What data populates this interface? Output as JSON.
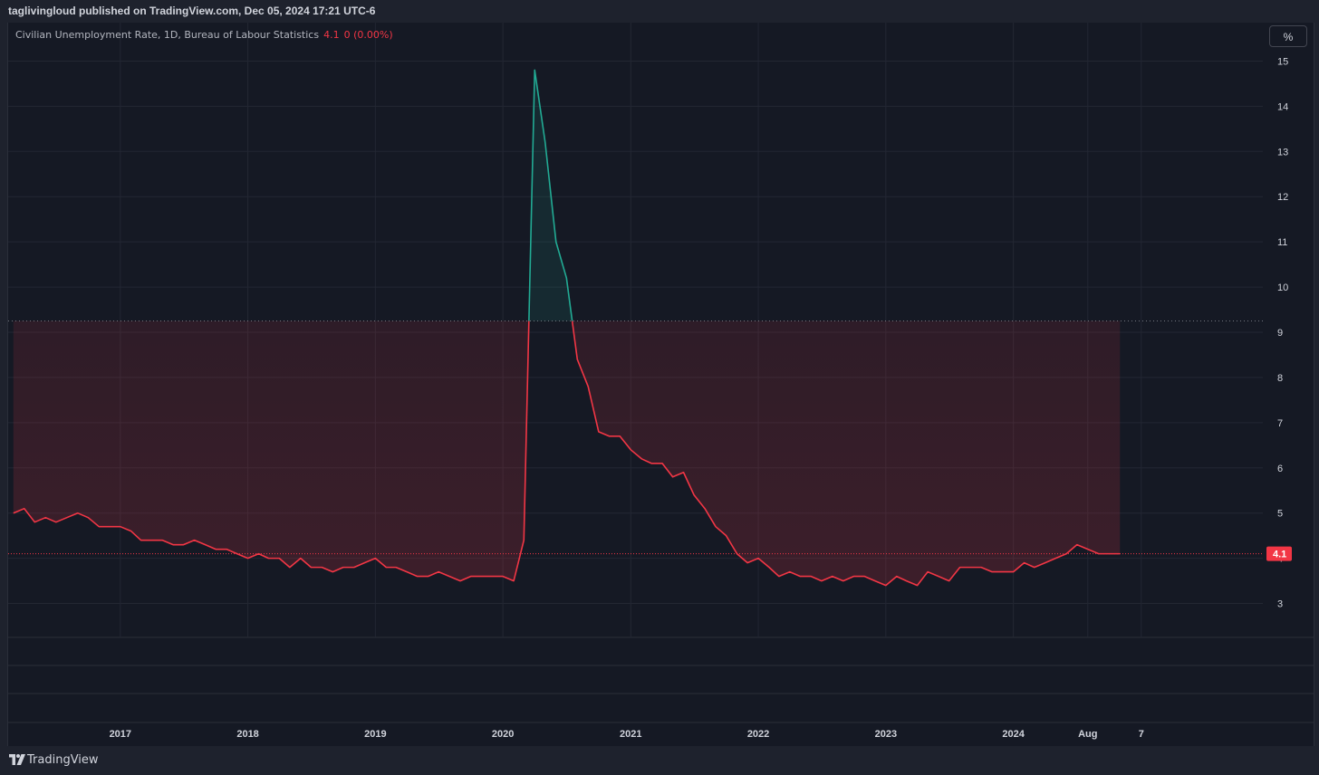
{
  "header": {
    "published_text": "taglivingloud published on TradingView.com, Dec 05, 2024 17:21 UTC-6"
  },
  "legend": {
    "series_name": "Civilian Unemployment Rate, 1D, Bureau of Labour Statistics",
    "last_value": "4.1",
    "change": "0 (0.00%)"
  },
  "scale_button": {
    "label": "%"
  },
  "price_label": "4.1",
  "footer": {
    "brand": "TradingView"
  },
  "colors": {
    "background": "#151924",
    "line_above_base": "#22ab94",
    "line_below_base": "#f23645",
    "price_label_bg": "#f23645",
    "grid": "#232733",
    "axis_text": "#d1d4dc"
  },
  "chart_data": {
    "type": "line",
    "style": "baseline",
    "baseline_value": 9.25,
    "last_value": 4.1,
    "y_axis": {
      "side": "right",
      "ylim": [
        2.25,
        15.85
      ],
      "ticks": [
        3,
        4,
        5,
        6,
        7,
        8,
        9,
        10,
        11,
        12,
        13,
        14,
        15
      ]
    },
    "x_axis": {
      "tick_labels": [
        "2017",
        "2018",
        "2019",
        "2020",
        "2021",
        "2022",
        "2023",
        "2024",
        "Aug",
        "7"
      ],
      "tick_dates": [
        "2017-01-01",
        "2018-01-01",
        "2019-01-01",
        "2020-01-01",
        "2021-01-01",
        "2022-01-01",
        "2023-01-01",
        "2024-01-01",
        "2024-08-01",
        "2025-01-01"
      ],
      "range": [
        "2016-02-15",
        "2025-12-15"
      ]
    },
    "grid": true,
    "series": [
      {
        "x": [
          "2016-03-01",
          "2016-04-01",
          "2016-05-01",
          "2016-06-01",
          "2016-07-01",
          "2016-08-01",
          "2016-09-01",
          "2016-10-01",
          "2016-11-01",
          "2016-12-01",
          "2017-01-01",
          "2017-02-01",
          "2017-03-01",
          "2017-04-01",
          "2017-05-01",
          "2017-06-01",
          "2017-07-01",
          "2017-08-01",
          "2017-09-01",
          "2017-10-01",
          "2017-11-01",
          "2017-12-01",
          "2018-01-01",
          "2018-02-01",
          "2018-03-01",
          "2018-04-01",
          "2018-05-01",
          "2018-06-01",
          "2018-07-01",
          "2018-08-01",
          "2018-09-01",
          "2018-10-01",
          "2018-11-01",
          "2018-12-01",
          "2019-01-01",
          "2019-02-01",
          "2019-03-01",
          "2019-04-01",
          "2019-05-01",
          "2019-06-01",
          "2019-07-01",
          "2019-08-01",
          "2019-09-01",
          "2019-10-01",
          "2019-11-01",
          "2019-12-01",
          "2020-01-01",
          "2020-02-01",
          "2020-03-01",
          "2020-04-01",
          "2020-05-01",
          "2020-06-01",
          "2020-07-01",
          "2020-08-01",
          "2020-09-01",
          "2020-10-01",
          "2020-11-01",
          "2020-12-01",
          "2021-01-01",
          "2021-02-01",
          "2021-03-01",
          "2021-04-01",
          "2021-05-01",
          "2021-06-01",
          "2021-07-01",
          "2021-08-01",
          "2021-09-01",
          "2021-10-01",
          "2021-11-01",
          "2021-12-01",
          "2022-01-01",
          "2022-02-01",
          "2022-03-01",
          "2022-04-01",
          "2022-05-01",
          "2022-06-01",
          "2022-07-01",
          "2022-08-01",
          "2022-09-01",
          "2022-10-01",
          "2022-11-01",
          "2022-12-01",
          "2023-01-01",
          "2023-02-01",
          "2023-03-01",
          "2023-04-01",
          "2023-05-01",
          "2023-06-01",
          "2023-07-01",
          "2023-08-01",
          "2023-09-01",
          "2023-10-01",
          "2023-11-01",
          "2023-12-01",
          "2024-01-01",
          "2024-02-01",
          "2024-03-01",
          "2024-04-01",
          "2024-05-01",
          "2024-06-01",
          "2024-07-01",
          "2024-08-01",
          "2024-09-01",
          "2024-10-01",
          "2024-11-01"
        ],
        "y": [
          5.0,
          5.1,
          4.8,
          4.9,
          4.8,
          4.9,
          5.0,
          4.9,
          4.7,
          4.7,
          4.7,
          4.6,
          4.4,
          4.4,
          4.4,
          4.3,
          4.3,
          4.4,
          4.3,
          4.2,
          4.2,
          4.1,
          4.0,
          4.1,
          4.0,
          4.0,
          3.8,
          4.0,
          3.8,
          3.8,
          3.7,
          3.8,
          3.8,
          3.9,
          4.0,
          3.8,
          3.8,
          3.7,
          3.6,
          3.6,
          3.7,
          3.6,
          3.5,
          3.6,
          3.6,
          3.6,
          3.6,
          3.5,
          4.4,
          14.8,
          13.2,
          11.0,
          10.2,
          8.4,
          7.8,
          6.8,
          6.7,
          6.7,
          6.4,
          6.2,
          6.1,
          6.1,
          5.8,
          5.9,
          5.4,
          5.1,
          4.7,
          4.5,
          4.1,
          3.9,
          4.0,
          3.8,
          3.6,
          3.7,
          3.6,
          3.6,
          3.5,
          3.6,
          3.5,
          3.6,
          3.6,
          3.5,
          3.4,
          3.6,
          3.5,
          3.4,
          3.7,
          3.6,
          3.5,
          3.8,
          3.8,
          3.8,
          3.7,
          3.7,
          3.7,
          3.9,
          3.8,
          3.9,
          4.0,
          4.1,
          4.3,
          4.2,
          4.1,
          4.1,
          4.1
        ]
      }
    ]
  }
}
